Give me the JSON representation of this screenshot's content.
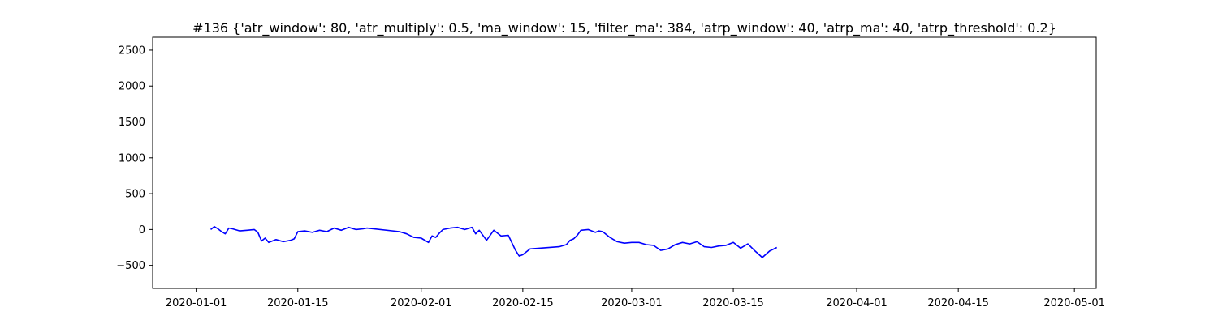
{
  "chart_data": {
    "type": "line",
    "title": "#136 {'atr_window': 80, 'atr_multiply': 0.5, 'ma_window': 15, 'filter_ma': 384, 'atrp_window': 40, 'atrp_ma': 40, 'atrp_threshold': 0.2}",
    "xlabel": "",
    "ylabel": "",
    "x_axis": {
      "type": "date",
      "range": [
        "2019-12-26",
        "2020-05-04"
      ],
      "ticks": [
        "2020-01-01",
        "2020-01-15",
        "2020-02-01",
        "2020-02-15",
        "2020-03-01",
        "2020-03-15",
        "2020-04-01",
        "2020-04-15",
        "2020-05-01"
      ]
    },
    "y_axis": {
      "range": [
        -820,
        2680
      ],
      "ticks": [
        -500,
        0,
        500,
        1000,
        1500,
        2000,
        2500
      ]
    },
    "grid": false,
    "legend": "none",
    "series": [
      {
        "color": "#0000ff",
        "points": [
          [
            "2020-01-03",
            0
          ],
          [
            "2020-01-03.5",
            40
          ],
          [
            "2020-01-04",
            10
          ],
          [
            "2020-01-04.5",
            -30
          ],
          [
            "2020-01-05",
            -60
          ],
          [
            "2020-01-05.5",
            20
          ],
          [
            "2020-01-06",
            10
          ],
          [
            "2020-01-07",
            -20
          ],
          [
            "2020-01-08",
            -10
          ],
          [
            "2020-01-09",
            0
          ],
          [
            "2020-01-09.5",
            -40
          ],
          [
            "2020-01-10",
            -160
          ],
          [
            "2020-01-10.5",
            -120
          ],
          [
            "2020-01-11",
            -180
          ],
          [
            "2020-01-12",
            -140
          ],
          [
            "2020-01-13",
            -170
          ],
          [
            "2020-01-14",
            -150
          ],
          [
            "2020-01-14.5",
            -130
          ],
          [
            "2020-01-15",
            -30
          ],
          [
            "2020-01-16",
            -20
          ],
          [
            "2020-01-17",
            -40
          ],
          [
            "2020-01-18",
            -10
          ],
          [
            "2020-01-19",
            -30
          ],
          [
            "2020-01-20",
            20
          ],
          [
            "2020-01-21",
            -10
          ],
          [
            "2020-01-22",
            30
          ],
          [
            "2020-01-23",
            0
          ],
          [
            "2020-01-24",
            10
          ],
          [
            "2020-01-24.5",
            20
          ],
          [
            "2020-01-29",
            -30
          ],
          [
            "2020-01-30",
            -60
          ],
          [
            "2020-01-31",
            -110
          ],
          [
            "2020-02-01",
            -120
          ],
          [
            "2020-02-02",
            -180
          ],
          [
            "2020-02-02.5",
            -90
          ],
          [
            "2020-02-03",
            -110
          ],
          [
            "2020-02-03.5",
            -50
          ],
          [
            "2020-02-04",
            0
          ],
          [
            "2020-02-05",
            20
          ],
          [
            "2020-02-06",
            30
          ],
          [
            "2020-02-07",
            0
          ],
          [
            "2020-02-08",
            30
          ],
          [
            "2020-02-08.5",
            -60
          ],
          [
            "2020-02-09",
            -10
          ],
          [
            "2020-02-10",
            -150
          ],
          [
            "2020-02-11",
            -10
          ],
          [
            "2020-02-12",
            -90
          ],
          [
            "2020-02-13",
            -80
          ],
          [
            "2020-02-14",
            -290
          ],
          [
            "2020-02-14.5",
            -370
          ],
          [
            "2020-02-15",
            -350
          ],
          [
            "2020-02-16",
            -270
          ],
          [
            "2020-02-20",
            -240
          ],
          [
            "2020-02-21",
            -210
          ],
          [
            "2020-02-21.5",
            -150
          ],
          [
            "2020-02-22",
            -130
          ],
          [
            "2020-02-22.5",
            -80
          ],
          [
            "2020-02-23",
            -10
          ],
          [
            "2020-02-24",
            0
          ],
          [
            "2020-02-25",
            -40
          ],
          [
            "2020-02-25.5",
            -20
          ],
          [
            "2020-02-26",
            -30
          ],
          [
            "2020-02-27",
            -110
          ],
          [
            "2020-02-28",
            -170
          ],
          [
            "2020-02-29",
            -190
          ],
          [
            "2020-03-01",
            -180
          ],
          [
            "2020-03-02",
            -180
          ],
          [
            "2020-03-03",
            -210
          ],
          [
            "2020-03-04",
            -220
          ],
          [
            "2020-03-05",
            -290
          ],
          [
            "2020-03-06",
            -270
          ],
          [
            "2020-03-07",
            -210
          ],
          [
            "2020-03-08",
            -180
          ],
          [
            "2020-03-09",
            -200
          ],
          [
            "2020-03-10",
            -170
          ],
          [
            "2020-03-11",
            -240
          ],
          [
            "2020-03-12",
            -250
          ],
          [
            "2020-03-13",
            -230
          ],
          [
            "2020-03-14",
            -220
          ],
          [
            "2020-03-15",
            -180
          ],
          [
            "2020-03-16",
            -260
          ],
          [
            "2020-03-17",
            -200
          ],
          [
            "2020-03-18",
            -300
          ],
          [
            "2020-03-19",
            -390
          ],
          [
            "2020-03-20",
            -300
          ],
          [
            "2020-03-21",
            -250
          ]
        ]
      }
    ]
  }
}
